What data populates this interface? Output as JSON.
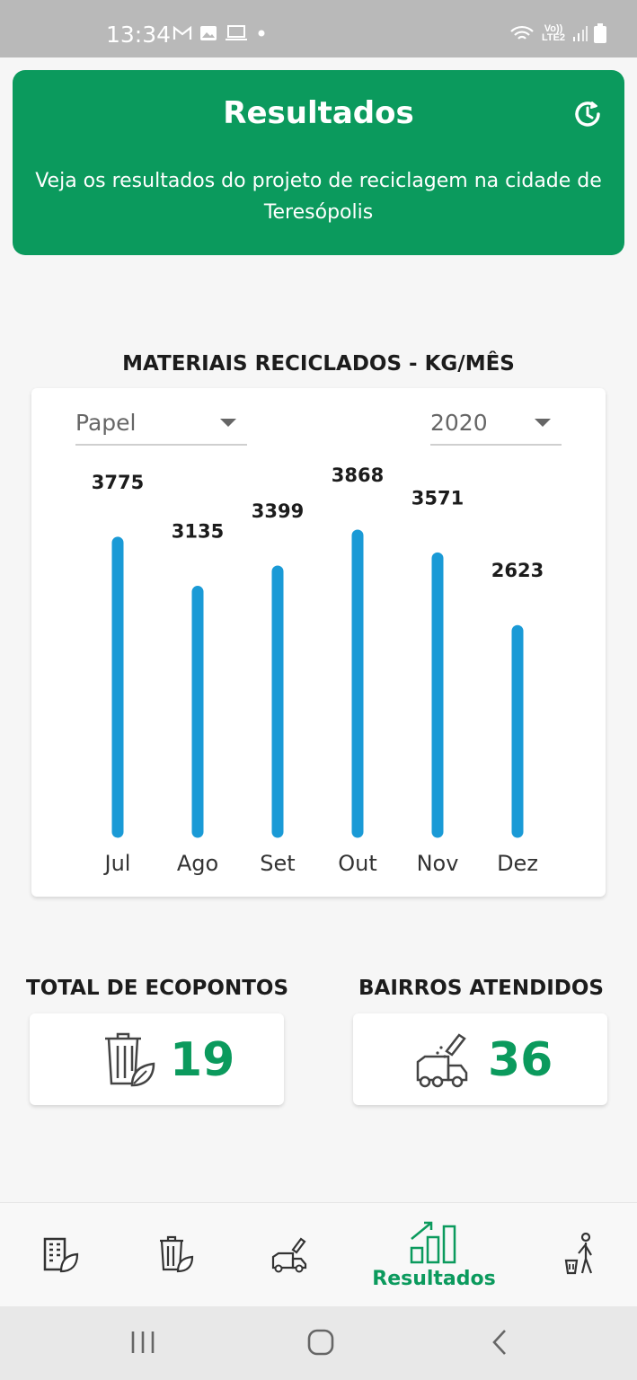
{
  "status_bar": {
    "time": "13:34",
    "network_label": "Vo)) LTE2",
    "icons": [
      "gmail-icon",
      "image-icon",
      "laptop-icon",
      "dot-icon",
      "wifi-icon",
      "signal-icon",
      "battery-icon"
    ]
  },
  "header": {
    "title": "Resultados",
    "subtitle": "Veja os resultados do projeto de reciclagem na cidade de Teresópolis",
    "icon": "refresh-clock-icon",
    "color": "#0b9a5d"
  },
  "chart_section": {
    "title": "MATERIAIS RECICLADOS - KG/MÊS",
    "material_select": {
      "value": "Papel"
    },
    "year_select": {
      "value": "2020"
    }
  },
  "chart_data": {
    "type": "bar",
    "title": "MATERIAIS RECICLADOS - KG/MÊS",
    "categories": [
      "Jul",
      "Ago",
      "Set",
      "Out",
      "Nov",
      "Dez"
    ],
    "values": [
      3775,
      3135,
      3399,
      3868,
      3571,
      2623
    ],
    "data_labels": [
      "3775",
      "3135",
      "3399",
      "3868",
      "3571",
      "2623"
    ],
    "xlabel": "",
    "ylabel": "",
    "ylim": [
      0,
      3868
    ],
    "bar_color": "#1a9ad6",
    "grid": false
  },
  "stats": [
    {
      "label": "TOTAL DE ECOPONTOS",
      "value": "19",
      "icon": "recycle-bin-leaf-icon"
    },
    {
      "label": "BAIRROS ATENDIDOS",
      "value": "36",
      "icon": "garbage-truck-icon"
    }
  ],
  "bottom_nav": {
    "items": [
      {
        "icon": "city-building-icon",
        "label": "",
        "active": false
      },
      {
        "icon": "recycle-bin-leaf-icon",
        "label": "",
        "active": false
      },
      {
        "icon": "garbage-truck-icon",
        "label": "",
        "active": false
      },
      {
        "icon": "growth-chart-icon",
        "label": "Resultados",
        "active": true
      },
      {
        "icon": "person-recycling-icon",
        "label": "",
        "active": false
      }
    ],
    "active_color": "#0b9a5d"
  },
  "system_nav": [
    "recents-icon",
    "home-icon",
    "back-icon"
  ]
}
